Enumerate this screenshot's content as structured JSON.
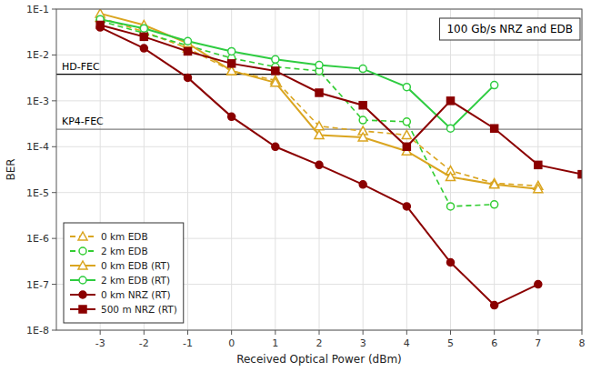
{
  "chart_data": {
    "type": "line",
    "title": "100 Gb/s NRZ and EDB",
    "x_label": "Received Optical Power (dBm)",
    "y_label": "BER",
    "log": "y",
    "grid": true,
    "legend": "lower left",
    "xlim": [
      -4,
      8
    ],
    "xticks": [
      -3,
      -2,
      -1,
      0,
      1,
      2,
      3,
      4,
      5,
      6,
      7,
      8
    ],
    "ylim": [
      1e-08,
      0.1
    ],
    "yticks": [
      {
        "value": 1e-08,
        "label": "1E-8"
      },
      {
        "value": 1e-07,
        "label": "1E-7"
      },
      {
        "value": 1e-06,
        "label": "1E-6"
      },
      {
        "value": 1e-05,
        "label": "1E-5"
      },
      {
        "value": 0.0001,
        "label": "1E-4"
      },
      {
        "value": 0.001,
        "label": "1E-3"
      },
      {
        "value": 0.01,
        "label": "1E-2"
      },
      {
        "value": 0.1,
        "label": "1E-1"
      }
    ],
    "annotations": [
      {
        "label": "HD-FEC",
        "y": 0.0038,
        "color": "black"
      },
      {
        "label": "KP4-FEC",
        "y": 0.00024,
        "color": "gray"
      }
    ],
    "series": [
      {
        "name": "0 km EDB",
        "color": "#DAA520",
        "line_style": "dashed",
        "marker": "triangle-open",
        "x": [
          -3,
          -2,
          -1,
          0,
          1,
          2,
          3,
          4,
          5,
          6,
          7
        ],
        "values": [
          0.065,
          0.032,
          0.014,
          0.0045,
          0.0028,
          0.00028,
          0.00022,
          0.00018,
          3e-05,
          1.6e-05,
          1.4e-05
        ]
      },
      {
        "name": "2 km EDB",
        "color": "#32CD32",
        "line_style": "dashed",
        "marker": "circle-open",
        "x": [
          -3,
          -2,
          -1,
          0,
          1,
          2,
          3,
          4,
          5,
          6
        ],
        "values": [
          0.055,
          0.03,
          0.016,
          0.0085,
          0.0055,
          0.0045,
          0.00038,
          0.00035,
          5e-06,
          5.5e-06
        ]
      },
      {
        "name": "0 km EDB (RT)",
        "color": "#DAA520",
        "line_style": "solid",
        "marker": "triangle-open",
        "x": [
          -3,
          -2,
          -1,
          0,
          1,
          2,
          3,
          4,
          5,
          6,
          7
        ],
        "values": [
          0.08,
          0.045,
          0.018,
          0.0045,
          0.0025,
          0.00018,
          0.00016,
          8e-05,
          2.2e-05,
          1.5e-05,
          1.2e-05
        ]
      },
      {
        "name": "2 km EDB (RT)",
        "color": "#2ECC40",
        "line_style": "solid",
        "marker": "circle-open",
        "x": [
          -3,
          -2,
          -1,
          0,
          1,
          2,
          3,
          4,
          5,
          6
        ],
        "values": [
          0.06,
          0.038,
          0.02,
          0.012,
          0.008,
          0.006,
          0.005,
          0.002,
          0.00025,
          0.0022
        ]
      },
      {
        "name": "0 km NRZ (RT)",
        "color": "#8B0000",
        "line_style": "solid",
        "marker": "circle",
        "x": [
          -3,
          -2,
          -1,
          0,
          1,
          2,
          3,
          4,
          5,
          6,
          7
        ],
        "values": [
          0.04,
          0.014,
          0.0032,
          0.00045,
          0.0001,
          4e-05,
          1.5e-05,
          5e-06,
          3e-07,
          3.5e-08,
          1e-07
        ]
      },
      {
        "name": "500 m NRZ (RT)",
        "color": "#8B0000",
        "line_style": "solid",
        "marker": "square",
        "x": [
          -3,
          -2,
          -1,
          0,
          1,
          2,
          3,
          4,
          5,
          6,
          7,
          8
        ],
        "values": [
          0.045,
          0.025,
          0.012,
          0.0065,
          0.0045,
          0.0015,
          0.0008,
          0.0001,
          0.001,
          0.00025,
          4e-05,
          2.5e-05
        ]
      }
    ]
  }
}
